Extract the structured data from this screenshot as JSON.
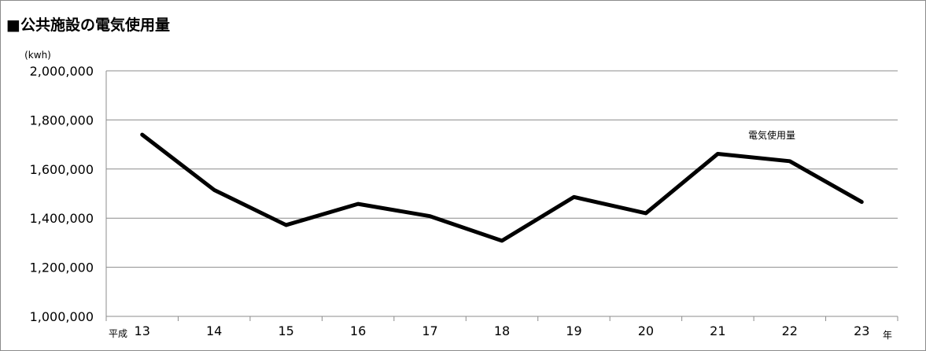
{
  "chart_data": {
    "type": "line",
    "title": "■公共施設の電気使用量",
    "y_unit": "(kwh)",
    "x_prefix": "平成",
    "x_suffix": "年",
    "categories": [
      "13",
      "14",
      "15",
      "16",
      "17",
      "18",
      "19",
      "20",
      "21",
      "22",
      "23"
    ],
    "series": [
      {
        "name": "電気使用量",
        "values": [
          1740000,
          1515000,
          1372000,
          1458000,
          1408000,
          1308000,
          1486000,
          1420000,
          1662000,
          1632000,
          1466000
        ]
      }
    ],
    "ylim": [
      1000000,
      2000000
    ],
    "yticks": [
      1000000,
      1200000,
      1400000,
      1600000,
      1800000,
      2000000
    ],
    "ytick_labels": [
      "1,000,000",
      "1,200,000",
      "1,400,000",
      "1,600,000",
      "1,800,000",
      "2,000,000"
    ],
    "grid": true,
    "line_color": "#000000"
  }
}
